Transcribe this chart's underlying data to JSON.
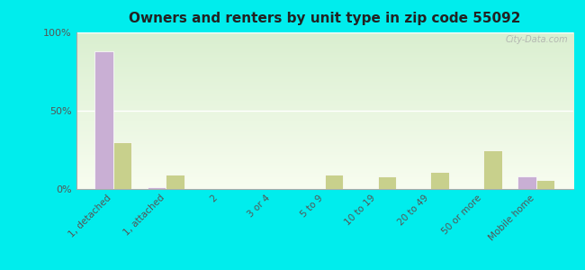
{
  "title": "Owners and renters by unit type in zip code 55092",
  "categories": [
    "1, detached",
    "1, attached",
    "2",
    "3 or 4",
    "5 to 9",
    "10 to 19",
    "20 to 49",
    "50 or more",
    "Mobile home"
  ],
  "owner_values": [
    88,
    1,
    0,
    0,
    0,
    0,
    0,
    0,
    8
  ],
  "renter_values": [
    30,
    9,
    0,
    0,
    9,
    8,
    11,
    25,
    6
  ],
  "owner_color": "#c9afd4",
  "renter_color": "#c8d08c",
  "background_color": "#00eded",
  "plot_bg_color": "#eef5e0",
  "ylabel_ticks": [
    "0%",
    "50%",
    "100%"
  ],
  "ytick_values": [
    0,
    50,
    100
  ],
  "ylim": [
    0,
    100
  ],
  "bar_width": 0.35,
  "watermark": "City-Data.com"
}
